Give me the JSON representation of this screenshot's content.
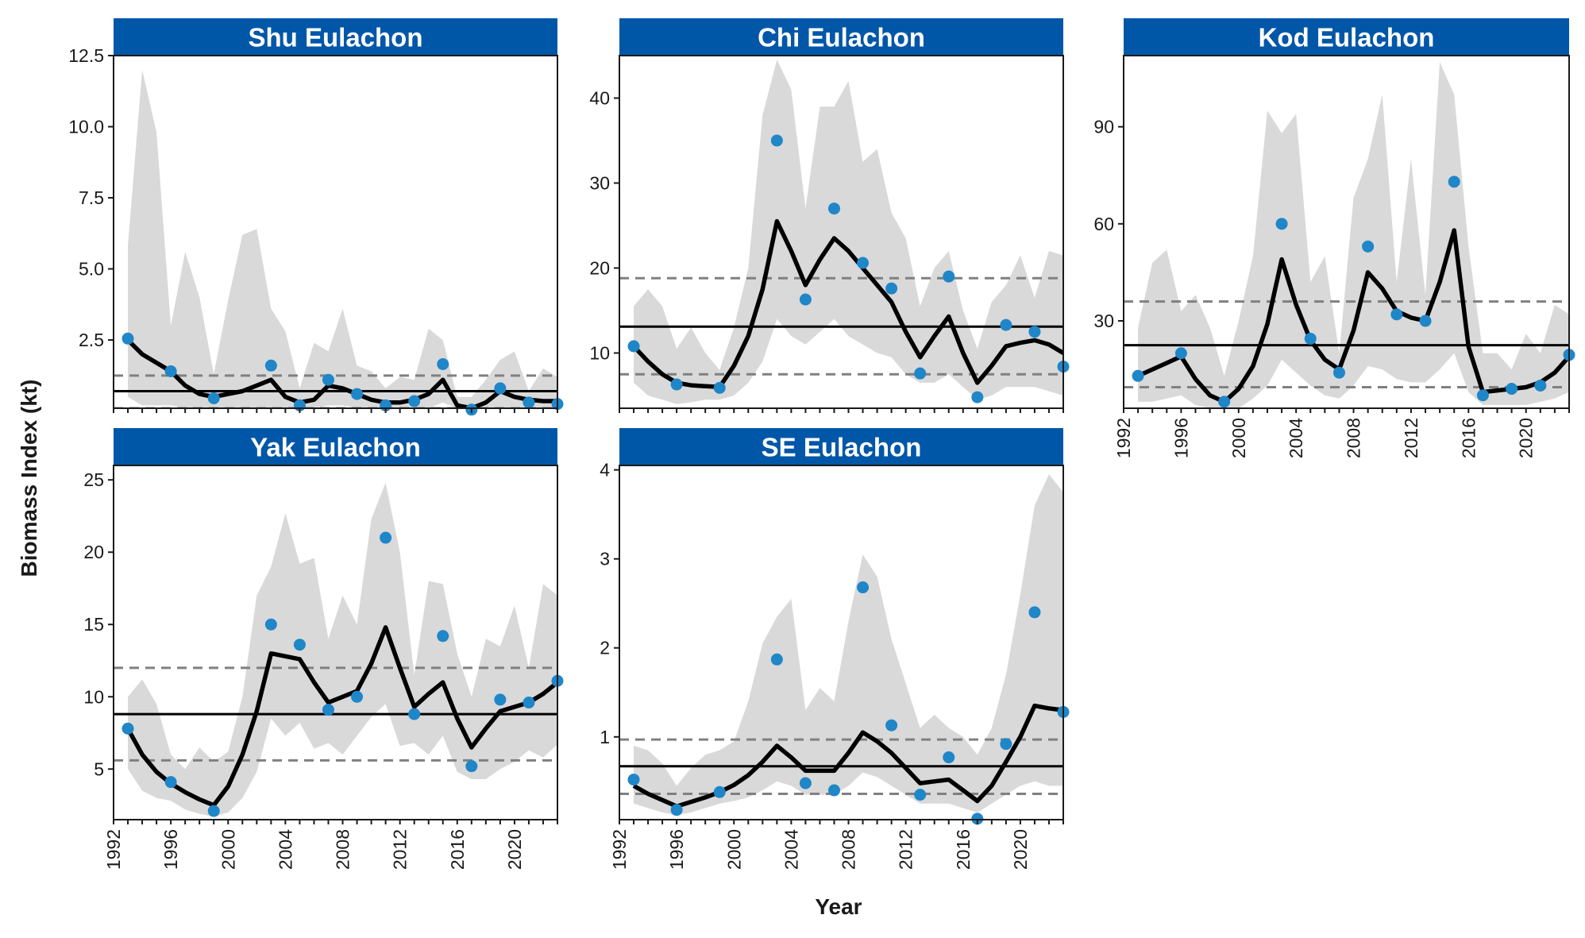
{
  "figure": {
    "xlabel": "Year",
    "ylabel": "Biomass Index (kt)"
  },
  "colors": {
    "strip": "#0057A8",
    "strip_text": "#FFFFFF",
    "ribbon": "#D9D9D9",
    "fit_line": "#000000",
    "points": "#1F86C8",
    "mean_line": "#000000",
    "ci_lines": "#808080"
  },
  "chart_data": [
    {
      "type": "line",
      "title": "Shu Eulachon",
      "xlim": [
        1992,
        2023
      ],
      "xticks": [
        1992,
        1996,
        2000,
        2004,
        2008,
        2012,
        2016,
        2020
      ],
      "ylim": [
        0.1,
        12.5
      ],
      "yticks": [
        2.5,
        5.0,
        7.5,
        10.0,
        12.5
      ],
      "ytick_labels": [
        "2.5",
        "5.0",
        "7.5",
        "10.0",
        "12.5"
      ],
      "show_x_ticks": false,
      "fit": {
        "x": [
          1993,
          1994,
          1995,
          1996,
          1997,
          1998,
          1999,
          2000,
          2001,
          2002,
          2003,
          2004,
          2005,
          2006,
          2007,
          2008,
          2009,
          2010,
          2011,
          2012,
          2013,
          2014,
          2015,
          2016,
          2017,
          2018,
          2019,
          2020,
          2021,
          2022,
          2023
        ],
        "y": [
          2.5,
          2.0,
          1.7,
          1.4,
          0.9,
          0.6,
          0.5,
          0.6,
          0.7,
          0.9,
          1.1,
          0.5,
          0.3,
          0.4,
          0.9,
          0.8,
          0.6,
          0.4,
          0.3,
          0.3,
          0.4,
          0.6,
          1.1,
          0.2,
          0.1,
          0.3,
          0.7,
          0.5,
          0.4,
          0.35,
          0.35
        ]
      },
      "ribbon": {
        "lower": [
          0.5,
          0.2,
          0.2,
          0.2,
          0.1,
          0.1,
          0.1,
          0.1,
          0.1,
          0.1,
          0.1,
          0.1,
          0.1,
          0.1,
          0.2,
          0.2,
          0.1,
          0.1,
          0.1,
          0.1,
          0.1,
          0.1,
          0.3,
          0.1,
          0.1,
          0.1,
          0.1,
          0.1,
          0.1,
          0.1,
          0.1
        ],
        "upper": [
          5.8,
          12.0,
          9.8,
          3.0,
          5.6,
          4.0,
          1.3,
          3.9,
          6.2,
          6.4,
          3.6,
          2.8,
          0.8,
          2.4,
          2.1,
          3.6,
          1.6,
          1.4,
          0.8,
          1.2,
          1.1,
          2.9,
          2.5,
          0.5,
          0.5,
          1.1,
          1.8,
          2.1,
          0.7,
          1.5,
          1.2
        ]
      },
      "points": {
        "x": [
          1993,
          1996,
          1999,
          2003,
          2005,
          2007,
          2009,
          2011,
          2013,
          2015,
          2017,
          2019,
          2021,
          2023
        ],
        "y": [
          2.55,
          1.4,
          0.45,
          1.6,
          0.2,
          1.1,
          0.6,
          0.2,
          0.35,
          1.65,
          0.05,
          0.8,
          0.3,
          0.25
        ]
      },
      "mean": 0.7,
      "ci": [
        0.1,
        1.25
      ]
    },
    {
      "type": "line",
      "title": "Chi Eulachon",
      "xlim": [
        1992,
        2023
      ],
      "xticks": [
        1992,
        1996,
        2000,
        2004,
        2008,
        2012,
        2016,
        2020
      ],
      "ylim": [
        3.5,
        45
      ],
      "yticks": [
        10,
        20,
        30,
        40
      ],
      "ytick_labels": [
        "10",
        "20",
        "30",
        "40"
      ],
      "show_x_ticks": false,
      "fit": {
        "x": [
          1993,
          1994,
          1995,
          1996,
          1997,
          1998,
          1999,
          2000,
          2001,
          2002,
          2003,
          2004,
          2005,
          2006,
          2007,
          2008,
          2009,
          2010,
          2011,
          2012,
          2013,
          2014,
          2015,
          2016,
          2017,
          2018,
          2019,
          2020,
          2021,
          2022,
          2023
        ],
        "y": [
          10.8,
          9.0,
          7.5,
          6.5,
          6.2,
          6.1,
          6.0,
          8.5,
          12.0,
          17.5,
          25.5,
          22.0,
          18.0,
          21.0,
          23.5,
          22.0,
          20.0,
          18.0,
          16.0,
          12.5,
          9.5,
          12.0,
          14.3,
          10.0,
          6.5,
          8.5,
          10.8,
          11.2,
          11.5,
          11.0,
          10.0
        ]
      },
      "ribbon": {
        "lower": [
          6.5,
          5.0,
          4.5,
          4.0,
          4.2,
          4.5,
          4.5,
          5.0,
          6.5,
          9.0,
          14.0,
          12.0,
          11.0,
          12.5,
          14.0,
          12.0,
          11.0,
          10.0,
          9.5,
          7.5,
          6.5,
          6.5,
          7.5,
          6.0,
          4.5,
          5.0,
          6.0,
          6.0,
          6.0,
          5.5,
          5.0
        ]
      },
      "ribbon_upper": [
        15.5,
        17.5,
        15.5,
        10.5,
        13.0,
        10.0,
        8.0,
        13.0,
        20.0,
        38.0,
        44.5,
        41.0,
        27.0,
        39.0,
        39.0,
        42.0,
        32.5,
        34.0,
        26.5,
        23.5,
        15.5,
        20.0,
        22.0,
        15.0,
        10.5,
        16.0,
        18.0,
        21.5,
        16.5,
        22.0,
        21.5
      ],
      "points": {
        "x": [
          1993,
          1996,
          1999,
          2003,
          2005,
          2007,
          2009,
          2011,
          2013,
          2015,
          2017,
          2019,
          2021,
          2023
        ],
        "y": [
          10.8,
          6.3,
          5.9,
          35.0,
          16.3,
          27.0,
          20.6,
          17.6,
          7.6,
          19.0,
          4.8,
          13.3,
          12.5,
          8.4
        ]
      },
      "mean": 13.1,
      "ci": [
        7.5,
        18.8
      ]
    },
    {
      "type": "line",
      "title": "Kod Eulachon",
      "xlim": [
        1992,
        2023
      ],
      "xticks": [
        1992,
        1996,
        2000,
        2004,
        2008,
        2012,
        2016,
        2020
      ],
      "xtick_labels": [
        "1992",
        "1996",
        "2000",
        "2004",
        "2008",
        "2012",
        "2016",
        "2020"
      ],
      "ylim": [
        3,
        112
      ],
      "yticks": [
        30,
        60,
        90
      ],
      "ytick_labels": [
        "30",
        "60",
        "90"
      ],
      "show_x_ticks": true,
      "fit": {
        "x": [
          1993,
          1994,
          1995,
          1996,
          1997,
          1998,
          1999,
          2000,
          2001,
          2002,
          2003,
          2004,
          2005,
          2006,
          2007,
          2008,
          2009,
          2010,
          2011,
          2012,
          2013,
          2014,
          2015,
          2016,
          2017,
          2018,
          2019,
          2020,
          2021,
          2022,
          2023
        ],
        "y": [
          13,
          15,
          17,
          19,
          12,
          7,
          5,
          9,
          16,
          29,
          49,
          35,
          24,
          18,
          15,
          27,
          45,
          40,
          33,
          31,
          30,
          42,
          58,
          22,
          8,
          8.5,
          9,
          9.5,
          11,
          14,
          19
        ]
      },
      "ribbon": {
        "lower": [
          5,
          5,
          6,
          7,
          4,
          3,
          3,
          3,
          6,
          10,
          18,
          14,
          10,
          7,
          6,
          10,
          16,
          15,
          12,
          11,
          11,
          15,
          20,
          8,
          4,
          4,
          4,
          4,
          5,
          6,
          8
        ]
      },
      "ribbon_upper": [
        28,
        48,
        52,
        33,
        38,
        28,
        13,
        30,
        50,
        95,
        88,
        94,
        42,
        50,
        20,
        68,
        80,
        100,
        42,
        80,
        38,
        110,
        100,
        53,
        20,
        20,
        15,
        26,
        20,
        35,
        32
      ],
      "points": {
        "x": [
          1993,
          1996,
          1999,
          2003,
          2005,
          2007,
          2009,
          2011,
          2013,
          2015,
          2017,
          2019,
          2021,
          2023
        ],
        "y": [
          13.0,
          20.0,
          5.0,
          60.0,
          24.5,
          14.0,
          53.0,
          32.0,
          30.0,
          73.0,
          7.0,
          9.0,
          10.0,
          19.5
        ]
      },
      "mean": 22.5,
      "ci": [
        9.5,
        36.0
      ]
    },
    {
      "type": "line",
      "title": "Yak Eulachon",
      "xlim": [
        1992,
        2023
      ],
      "xticks": [
        1992,
        1996,
        2000,
        2004,
        2008,
        2012,
        2016,
        2020
      ],
      "xtick_labels": [
        "1992",
        "1996",
        "2000",
        "2004",
        "2008",
        "2012",
        "2016",
        "2020"
      ],
      "ylim": [
        1.5,
        26
      ],
      "yticks": [
        5,
        10,
        15,
        20,
        25
      ],
      "ytick_labels": [
        "5",
        "10",
        "15",
        "20",
        "25"
      ],
      "show_x_ticks": true,
      "fit": {
        "x": [
          1993,
          1994,
          1995,
          1996,
          1997,
          1998,
          1999,
          2000,
          2001,
          2002,
          2003,
          2004,
          2005,
          2006,
          2007,
          2008,
          2009,
          2010,
          2011,
          2012,
          2013,
          2014,
          2015,
          2016,
          2017,
          2018,
          2019,
          2020,
          2021,
          2022,
          2023
        ],
        "y": [
          7.8,
          6.0,
          4.8,
          4.0,
          3.4,
          2.9,
          2.5,
          3.8,
          6.0,
          9.0,
          13.0,
          12.8,
          12.6,
          11.0,
          9.6,
          10.0,
          10.4,
          12.3,
          14.8,
          12.0,
          9.3,
          10.2,
          11.0,
          8.5,
          6.5,
          7.8,
          9.0,
          9.3,
          9.6,
          10.2,
          11.0
        ]
      },
      "ribbon": {
        "lower": [
          5.0,
          3.5,
          3.0,
          2.8,
          2.2,
          1.9,
          1.7,
          2.0,
          3.0,
          4.8,
          8.5,
          7.3,
          8.2,
          6.4,
          6.8,
          6.0,
          7.3,
          8.6,
          9.5,
          6.6,
          6.8,
          6.0,
          7.3,
          4.8,
          4.3,
          4.3,
          5.0,
          5.5,
          6.3,
          5.8,
          6.7
        ]
      },
      "ribbon_upper": [
        10.0,
        11.2,
        9.5,
        6.0,
        5.0,
        6.5,
        5.5,
        6.2,
        10.0,
        17.0,
        19.0,
        22.7,
        19.2,
        19.6,
        14.0,
        17.0,
        15.0,
        22.3,
        24.8,
        20.0,
        11.5,
        18.0,
        17.8,
        13.0,
        10.0,
        14.0,
        13.5,
        16.3,
        12.0,
        17.8,
        17.0
      ],
      "points": {
        "x": [
          1993,
          1996,
          1999,
          2003,
          2005,
          2007,
          2009,
          2011,
          2013,
          2015,
          2017,
          2019,
          2021,
          2023
        ],
        "y": [
          7.8,
          4.1,
          2.1,
          15.0,
          13.6,
          9.1,
          10.0,
          21.0,
          8.8,
          14.2,
          5.2,
          9.8,
          9.6,
          11.1
        ]
      },
      "mean": 8.8,
      "ci": [
        5.6,
        12.0
      ]
    },
    {
      "type": "line",
      "title": "SE Eulachon",
      "xlim": [
        1992,
        2023
      ],
      "xticks": [
        1992,
        1996,
        2000,
        2004,
        2008,
        2012,
        2016,
        2020
      ],
      "xtick_labels": [
        "1992",
        "1996",
        "2000",
        "2004",
        "2008",
        "2012",
        "2016",
        "2020"
      ],
      "ylim": [
        0.07,
        4.05
      ],
      "yticks": [
        1,
        2,
        3,
        4
      ],
      "ytick_labels": [
        "1",
        "2",
        "3",
        "4"
      ],
      "show_x_ticks": true,
      "fit": {
        "x": [
          1993,
          1994,
          1995,
          1996,
          1997,
          1998,
          1999,
          2000,
          2001,
          2002,
          2003,
          2004,
          2005,
          2006,
          2007,
          2008,
          2009,
          2010,
          2011,
          2012,
          2013,
          2014,
          2015,
          2016,
          2017,
          2018,
          2019,
          2020,
          2021,
          2022,
          2023
        ],
        "y": [
          0.45,
          0.36,
          0.29,
          0.22,
          0.27,
          0.32,
          0.38,
          0.46,
          0.57,
          0.72,
          0.9,
          0.77,
          0.62,
          0.62,
          0.62,
          0.82,
          1.05,
          0.95,
          0.82,
          0.65,
          0.48,
          0.5,
          0.52,
          0.4,
          0.28,
          0.45,
          0.72,
          1.0,
          1.35,
          1.32,
          1.3
        ]
      },
      "ribbon": {
        "lower": [
          0.25,
          0.2,
          0.15,
          0.12,
          0.15,
          0.2,
          0.25,
          0.28,
          0.32,
          0.4,
          0.5,
          0.45,
          0.35,
          0.35,
          0.35,
          0.45,
          0.6,
          0.55,
          0.45,
          0.35,
          0.25,
          0.25,
          0.25,
          0.2,
          0.15,
          0.25,
          0.35,
          0.45,
          0.5,
          0.45,
          0.45
        ]
      },
      "ribbon_upper": [
        0.9,
        0.85,
        0.7,
        0.45,
        0.65,
        0.8,
        0.85,
        0.95,
        1.4,
        2.05,
        2.35,
        2.55,
        1.3,
        1.55,
        1.4,
        2.3,
        3.05,
        2.8,
        2.1,
        1.6,
        1.1,
        1.25,
        1.1,
        1.0,
        0.8,
        1.1,
        1.7,
        2.6,
        3.6,
        3.95,
        3.75
      ],
      "points": {
        "x": [
          1993,
          1996,
          1999,
          2003,
          2005,
          2007,
          2009,
          2011,
          2013,
          2015,
          2017,
          2019,
          2021,
          2023
        ],
        "y": [
          0.52,
          0.18,
          0.38,
          1.87,
          0.48,
          0.4,
          2.68,
          1.13,
          0.35,
          0.77,
          0.08,
          0.92,
          2.4,
          1.28
        ]
      },
      "mean": 0.67,
      "ci": [
        0.36,
        0.97
      ]
    }
  ]
}
